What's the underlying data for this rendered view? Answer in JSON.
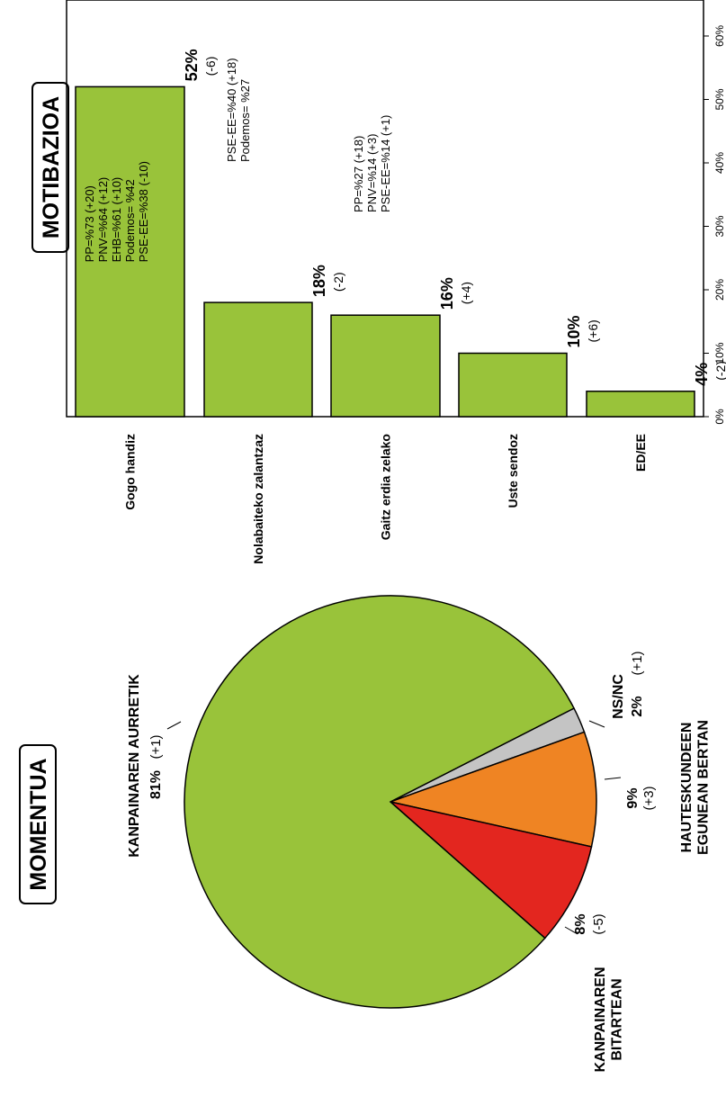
{
  "motibazioa": {
    "title": "MOTIBAZIOA",
    "chart_data": {
      "type": "bar",
      "categories": [
        "Gogo handiz",
        "Nolabaiteko zalantzaz",
        "Gaitz erdia zelako",
        "Uste sendoz",
        "ED/EE"
      ],
      "values": [
        52,
        18,
        16,
        10,
        4
      ],
      "value_labels": [
        "52%",
        "18%",
        "16%",
        "10%",
        "4%"
      ],
      "change_labels": [
        "(-6)",
        "(-2)",
        "(+4)",
        "(+6)",
        "(-2)"
      ],
      "annotations": [
        [
          "PP=%73 (+20)",
          "PNV=%64 (+12)",
          "EHB=%61 (+10)",
          "Podemos= %42",
          "PSE-EE=%38 (-10)"
        ],
        [
          "PSE-EE=%40 (+18)",
          "Podemos= %27"
        ],
        [
          "PP=%27 (+18)",
          "PNV=%14 (+3)",
          "PSE-EE=%14 (+1)"
        ],
        [],
        []
      ],
      "ticks": [
        "0%",
        "10%",
        "20%",
        "30%",
        "40%",
        "50%",
        "60%"
      ],
      "ylim": [
        0,
        60
      ],
      "bar_color": "#99c33a"
    }
  },
  "momentua": {
    "title": "MOMENTUA",
    "chart_data": {
      "type": "pie",
      "labels": [
        "KANPAINAREN AURRETIK",
        "KANPAINAREN BITARTEAN",
        "HAUTESKUNDEEN EGUNEAN BERTAN",
        "NS/NC"
      ],
      "values": [
        81,
        8,
        9,
        2
      ],
      "value_labels": [
        "81%",
        "8%",
        "9%",
        "2%"
      ],
      "change_labels": [
        "(+1)",
        "(-5)",
        "(+3)",
        "(+1)"
      ],
      "colors": [
        "#99c33a",
        "#e3261f",
        "#ef8423",
        "#c4c4c4"
      ]
    }
  }
}
